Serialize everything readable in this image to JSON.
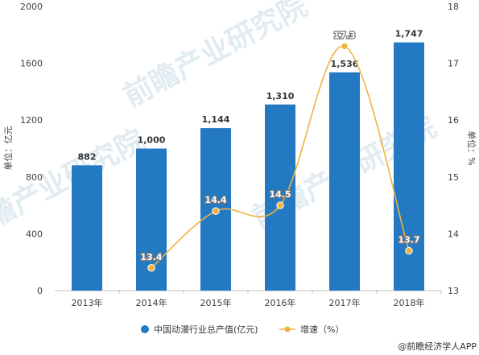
{
  "chart_data": {
    "type": "bar+line",
    "categories": [
      "2013年",
      "2014年",
      "2015年",
      "2016年",
      "2017年",
      "2018年"
    ],
    "series": [
      {
        "name": "中国动漫行业总产值(亿元)",
        "type": "bar",
        "axis": "left",
        "values": [
          882,
          1000,
          1144,
          1310,
          1536,
          1747
        ],
        "labels": [
          "882",
          "1,000",
          "1,144",
          "1,310",
          "1,536",
          "1,747"
        ],
        "color": "#2479c3"
      },
      {
        "name": "增速（%）",
        "type": "line",
        "axis": "right",
        "values": [
          null,
          13.4,
          14.4,
          14.5,
          17.3,
          13.7
        ],
        "labels": [
          "",
          "13.4",
          "14.4",
          "14.5",
          "17.3",
          "13.7"
        ],
        "color": "#f0b340"
      }
    ],
    "ylabel_left": "单位：亿元",
    "ylabel_right": "单位：%",
    "ylim_left": [
      0,
      2000
    ],
    "yticks_left": [
      "0",
      "400",
      "800",
      "1200",
      "1600",
      "2000"
    ],
    "ylim_right": [
      13,
      18
    ],
    "yticks_right": [
      "13",
      "14",
      "15",
      "16",
      "17",
      "18"
    ],
    "grid": false,
    "legend_position": "bottom"
  },
  "watermark": {
    "text": "前瞻产业研究院"
  },
  "footer": {
    "credit": "@前瞻经济学人APP"
  }
}
